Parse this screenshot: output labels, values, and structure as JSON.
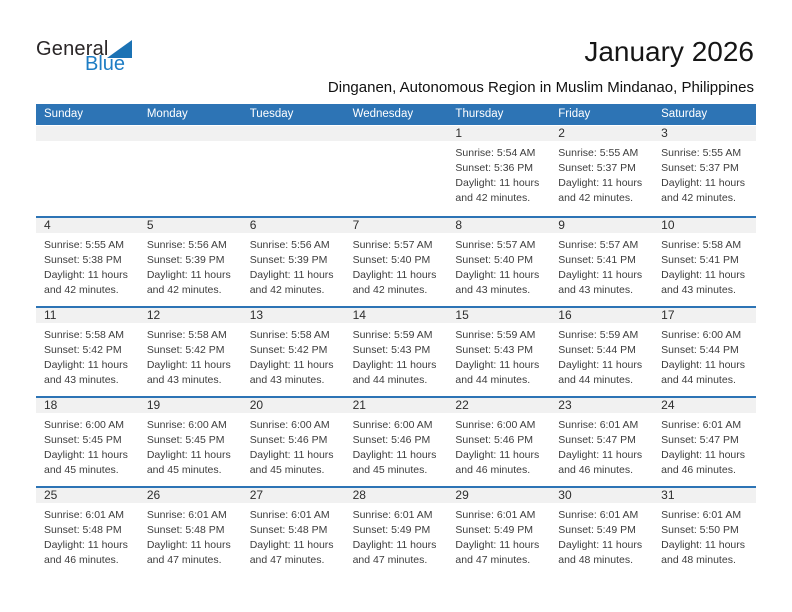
{
  "brand": {
    "line1": "General",
    "line2": "Blue"
  },
  "header": {
    "title": "January 2026",
    "subtitle": "Dinganen, Autonomous Region in Muslim Mindanao, Philippines"
  },
  "colors": {
    "header_blue": "#2d74b5",
    "separator_blue": "#2d74b5",
    "band_gray": "#f1f1f1",
    "logo_text_blue": "#1e7dc4",
    "logo_triangle_blue": "#1b72b4"
  },
  "calendar": {
    "weekdays": [
      "Sunday",
      "Monday",
      "Tuesday",
      "Wednesday",
      "Thursday",
      "Friday",
      "Saturday"
    ],
    "weeks": [
      [
        null,
        null,
        null,
        null,
        {
          "day": "1",
          "sunrise": "Sunrise: 5:54 AM",
          "sunset": "Sunset: 5:36 PM",
          "daylight": [
            "Daylight: 11 hours",
            "and 42 minutes."
          ]
        },
        {
          "day": "2",
          "sunrise": "Sunrise: 5:55 AM",
          "sunset": "Sunset: 5:37 PM",
          "daylight": [
            "Daylight: 11 hours",
            "and 42 minutes."
          ]
        },
        {
          "day": "3",
          "sunrise": "Sunrise: 5:55 AM",
          "sunset": "Sunset: 5:37 PM",
          "daylight": [
            "Daylight: 11 hours",
            "and 42 minutes."
          ]
        }
      ],
      [
        {
          "day": "4",
          "sunrise": "Sunrise: 5:55 AM",
          "sunset": "Sunset: 5:38 PM",
          "daylight": [
            "Daylight: 11 hours",
            "and 42 minutes."
          ]
        },
        {
          "day": "5",
          "sunrise": "Sunrise: 5:56 AM",
          "sunset": "Sunset: 5:39 PM",
          "daylight": [
            "Daylight: 11 hours",
            "and 42 minutes."
          ]
        },
        {
          "day": "6",
          "sunrise": "Sunrise: 5:56 AM",
          "sunset": "Sunset: 5:39 PM",
          "daylight": [
            "Daylight: 11 hours",
            "and 42 minutes."
          ]
        },
        {
          "day": "7",
          "sunrise": "Sunrise: 5:57 AM",
          "sunset": "Sunset: 5:40 PM",
          "daylight": [
            "Daylight: 11 hours",
            "and 42 minutes."
          ]
        },
        {
          "day": "8",
          "sunrise": "Sunrise: 5:57 AM",
          "sunset": "Sunset: 5:40 PM",
          "daylight": [
            "Daylight: 11 hours",
            "and 43 minutes."
          ]
        },
        {
          "day": "9",
          "sunrise": "Sunrise: 5:57 AM",
          "sunset": "Sunset: 5:41 PM",
          "daylight": [
            "Daylight: 11 hours",
            "and 43 minutes."
          ]
        },
        {
          "day": "10",
          "sunrise": "Sunrise: 5:58 AM",
          "sunset": "Sunset: 5:41 PM",
          "daylight": [
            "Daylight: 11 hours",
            "and 43 minutes."
          ]
        }
      ],
      [
        {
          "day": "11",
          "sunrise": "Sunrise: 5:58 AM",
          "sunset": "Sunset: 5:42 PM",
          "daylight": [
            "Daylight: 11 hours",
            "and 43 minutes."
          ]
        },
        {
          "day": "12",
          "sunrise": "Sunrise: 5:58 AM",
          "sunset": "Sunset: 5:42 PM",
          "daylight": [
            "Daylight: 11 hours",
            "and 43 minutes."
          ]
        },
        {
          "day": "13",
          "sunrise": "Sunrise: 5:58 AM",
          "sunset": "Sunset: 5:42 PM",
          "daylight": [
            "Daylight: 11 hours",
            "and 43 minutes."
          ]
        },
        {
          "day": "14",
          "sunrise": "Sunrise: 5:59 AM",
          "sunset": "Sunset: 5:43 PM",
          "daylight": [
            "Daylight: 11 hours",
            "and 44 minutes."
          ]
        },
        {
          "day": "15",
          "sunrise": "Sunrise: 5:59 AM",
          "sunset": "Sunset: 5:43 PM",
          "daylight": [
            "Daylight: 11 hours",
            "and 44 minutes."
          ]
        },
        {
          "day": "16",
          "sunrise": "Sunrise: 5:59 AM",
          "sunset": "Sunset: 5:44 PM",
          "daylight": [
            "Daylight: 11 hours",
            "and 44 minutes."
          ]
        },
        {
          "day": "17",
          "sunrise": "Sunrise: 6:00 AM",
          "sunset": "Sunset: 5:44 PM",
          "daylight": [
            "Daylight: 11 hours",
            "and 44 minutes."
          ]
        }
      ],
      [
        {
          "day": "18",
          "sunrise": "Sunrise: 6:00 AM",
          "sunset": "Sunset: 5:45 PM",
          "daylight": [
            "Daylight: 11 hours",
            "and 45 minutes."
          ]
        },
        {
          "day": "19",
          "sunrise": "Sunrise: 6:00 AM",
          "sunset": "Sunset: 5:45 PM",
          "daylight": [
            "Daylight: 11 hours",
            "and 45 minutes."
          ]
        },
        {
          "day": "20",
          "sunrise": "Sunrise: 6:00 AM",
          "sunset": "Sunset: 5:46 PM",
          "daylight": [
            "Daylight: 11 hours",
            "and 45 minutes."
          ]
        },
        {
          "day": "21",
          "sunrise": "Sunrise: 6:00 AM",
          "sunset": "Sunset: 5:46 PM",
          "daylight": [
            "Daylight: 11 hours",
            "and 45 minutes."
          ]
        },
        {
          "day": "22",
          "sunrise": "Sunrise: 6:00 AM",
          "sunset": "Sunset: 5:46 PM",
          "daylight": [
            "Daylight: 11 hours",
            "and 46 minutes."
          ]
        },
        {
          "day": "23",
          "sunrise": "Sunrise: 6:01 AM",
          "sunset": "Sunset: 5:47 PM",
          "daylight": [
            "Daylight: 11 hours",
            "and 46 minutes."
          ]
        },
        {
          "day": "24",
          "sunrise": "Sunrise: 6:01 AM",
          "sunset": "Sunset: 5:47 PM",
          "daylight": [
            "Daylight: 11 hours",
            "and 46 minutes."
          ]
        }
      ],
      [
        {
          "day": "25",
          "sunrise": "Sunrise: 6:01 AM",
          "sunset": "Sunset: 5:48 PM",
          "daylight": [
            "Daylight: 11 hours",
            "and 46 minutes."
          ]
        },
        {
          "day": "26",
          "sunrise": "Sunrise: 6:01 AM",
          "sunset": "Sunset: 5:48 PM",
          "daylight": [
            "Daylight: 11 hours",
            "and 47 minutes."
          ]
        },
        {
          "day": "27",
          "sunrise": "Sunrise: 6:01 AM",
          "sunset": "Sunset: 5:48 PM",
          "daylight": [
            "Daylight: 11 hours",
            "and 47 minutes."
          ]
        },
        {
          "day": "28",
          "sunrise": "Sunrise: 6:01 AM",
          "sunset": "Sunset: 5:49 PM",
          "daylight": [
            "Daylight: 11 hours",
            "and 47 minutes."
          ]
        },
        {
          "day": "29",
          "sunrise": "Sunrise: 6:01 AM",
          "sunset": "Sunset: 5:49 PM",
          "daylight": [
            "Daylight: 11 hours",
            "and 47 minutes."
          ]
        },
        {
          "day": "30",
          "sunrise": "Sunrise: 6:01 AM",
          "sunset": "Sunset: 5:49 PM",
          "daylight": [
            "Daylight: 11 hours",
            "and 48 minutes."
          ]
        },
        {
          "day": "31",
          "sunrise": "Sunrise: 6:01 AM",
          "sunset": "Sunset: 5:50 PM",
          "daylight": [
            "Daylight: 11 hours",
            "and 48 minutes."
          ]
        }
      ]
    ]
  }
}
